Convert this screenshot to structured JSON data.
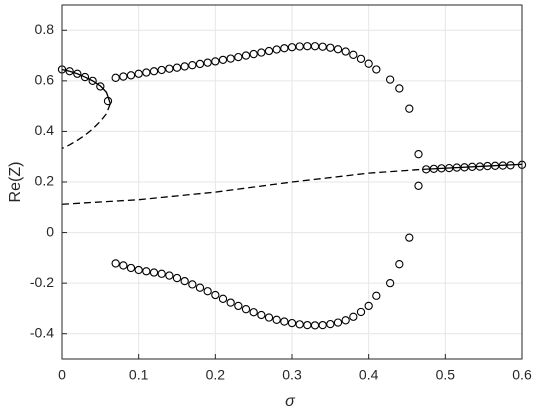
{
  "chart_data": {
    "type": "scatter",
    "xlabel": "σ",
    "ylabel": "Re(Z)",
    "xlim": [
      0,
      0.6
    ],
    "ylim": [
      -0.5,
      0.9
    ],
    "xticks": [
      0,
      0.1,
      0.2,
      0.3,
      0.4,
      0.5,
      0.6
    ],
    "yticks": [
      -0.4,
      -0.2,
      0,
      0.2,
      0.4,
      0.6,
      0.8
    ],
    "grid": true,
    "series": [
      {
        "type": "line",
        "dash": false,
        "color": "#000000",
        "x": [
          0,
          0.01,
          0.02,
          0.03,
          0.04,
          0.05,
          0.058,
          0.063
        ],
        "values": [
          0.645,
          0.638,
          0.628,
          0.615,
          0.6,
          0.58,
          0.555,
          0.51
        ]
      },
      {
        "type": "line",
        "dash": true,
        "color": "#000000",
        "x": [
          0.063,
          0.058,
          0.05,
          0.04,
          0.03,
          0.02,
          0.01,
          0
        ],
        "values": [
          0.51,
          0.47,
          0.44,
          0.41,
          0.385,
          0.365,
          0.347,
          0.333
        ]
      },
      {
        "type": "line",
        "dash": true,
        "color": "#000000",
        "x": [
          0,
          0.1,
          0.2,
          0.3,
          0.4,
          0.47
        ],
        "values": [
          0.112,
          0.13,
          0.16,
          0.2,
          0.235,
          0.25
        ]
      },
      {
        "type": "line",
        "dash": false,
        "color": "#000000",
        "x": [
          0.47,
          0.6
        ],
        "values": [
          0.25,
          0.27
        ]
      },
      {
        "type": "scatter",
        "color": "#000000",
        "x": [
          0,
          0.01,
          0.02,
          0.03,
          0.04,
          0.05,
          0.06
        ],
        "values": [
          0.645,
          0.638,
          0.628,
          0.615,
          0.6,
          0.578,
          0.52
        ]
      },
      {
        "type": "scatter",
        "color": "#000000",
        "x": [
          0.07,
          0.08,
          0.09,
          0.1,
          0.11,
          0.12,
          0.13,
          0.14,
          0.15,
          0.16,
          0.17,
          0.18,
          0.19,
          0.2,
          0.21,
          0.22,
          0.23,
          0.24,
          0.25,
          0.26,
          0.27,
          0.28,
          0.29,
          0.3,
          0.31,
          0.32,
          0.33,
          0.34,
          0.35,
          0.36,
          0.37,
          0.38,
          0.39,
          0.4,
          0.41,
          0.428,
          0.44,
          0.453,
          0.465
        ],
        "values": [
          0.612,
          0.617,
          0.622,
          0.628,
          0.633,
          0.638,
          0.643,
          0.648,
          0.652,
          0.657,
          0.662,
          0.667,
          0.672,
          0.677,
          0.683,
          0.688,
          0.694,
          0.7,
          0.706,
          0.712,
          0.718,
          0.724,
          0.729,
          0.733,
          0.736,
          0.737,
          0.737,
          0.735,
          0.731,
          0.725,
          0.716,
          0.703,
          0.687,
          0.668,
          0.645,
          0.605,
          0.57,
          0.49,
          0.31
        ]
      },
      {
        "type": "scatter",
        "color": "#000000",
        "x": [
          0.07,
          0.08,
          0.09,
          0.1,
          0.11,
          0.12,
          0.13,
          0.14,
          0.15,
          0.16,
          0.17,
          0.18,
          0.19,
          0.2,
          0.21,
          0.22,
          0.23,
          0.24,
          0.25,
          0.26,
          0.27,
          0.28,
          0.29,
          0.3,
          0.31,
          0.32,
          0.33,
          0.34,
          0.35,
          0.36,
          0.37,
          0.38,
          0.39,
          0.4,
          0.41,
          0.428,
          0.44,
          0.453,
          0.465
        ],
        "values": [
          -0.122,
          -0.13,
          -0.14,
          -0.148,
          -0.153,
          -0.158,
          -0.163,
          -0.17,
          -0.18,
          -0.192,
          -0.205,
          -0.218,
          -0.232,
          -0.247,
          -0.262,
          -0.277,
          -0.29,
          -0.303,
          -0.315,
          -0.326,
          -0.336,
          -0.345,
          -0.352,
          -0.358,
          -0.363,
          -0.366,
          -0.367,
          -0.366,
          -0.362,
          -0.356,
          -0.347,
          -0.333,
          -0.314,
          -0.29,
          -0.25,
          -0.2,
          -0.125,
          -0.02,
          0.185
        ]
      },
      {
        "type": "scatter",
        "color": "#000000",
        "x": [
          0.475,
          0.485,
          0.495,
          0.505,
          0.515,
          0.525,
          0.535,
          0.545,
          0.555,
          0.565,
          0.575,
          0.585,
          0.6
        ],
        "values": [
          0.25,
          0.252,
          0.254,
          0.255,
          0.257,
          0.258,
          0.26,
          0.261,
          0.263,
          0.264,
          0.265,
          0.266,
          0.268
        ]
      }
    ]
  }
}
